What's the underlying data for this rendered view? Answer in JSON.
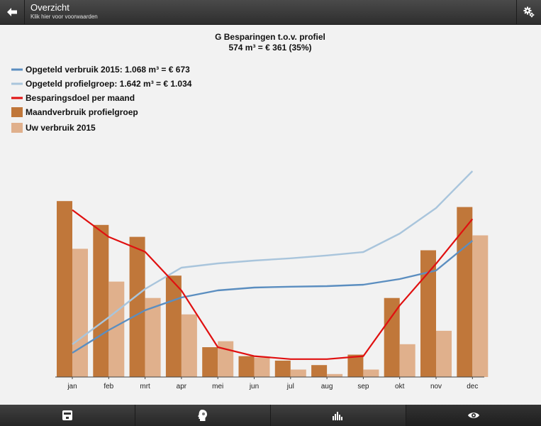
{
  "header": {
    "title": "Overzicht",
    "subtitle": "Klik hier voor voorwaarden",
    "back_icon": "arrow-left-icon",
    "settings_icon": "gears-icon"
  },
  "chart_data": {
    "type": "bar",
    "title": "G Besparingen t.o.v. profiel",
    "subtitle": "574 m³ = € 361 (35%)",
    "categories": [
      "jan",
      "feb",
      "mrt",
      "apr",
      "mei",
      "jun",
      "jul",
      "aug",
      "sep",
      "okt",
      "nov",
      "dec"
    ],
    "series": [
      {
        "name": "Opgeteld verbruik 2015: 1.068 m³ = € 673",
        "kind": "line",
        "color": "#5b8ec0",
        "values": [
          85,
          165,
          235,
          280,
          305,
          315,
          318,
          320,
          325,
          345,
          375,
          480
        ]
      },
      {
        "name": "Opgeteld profielgroep: 1.642 m³ = € 1.034",
        "kind": "line",
        "color": "#a9c5dc",
        "values": [
          115,
          210,
          310,
          385,
          400,
          410,
          418,
          428,
          440,
          505,
          595,
          725
        ]
      },
      {
        "name": "Besparingsdoel per maand",
        "kind": "line",
        "color": "#e01010",
        "values": [
          56,
          47,
          42,
          29,
          10,
          7,
          6,
          6,
          7,
          24,
          38,
          53
        ]
      },
      {
        "name": "Maandverbruik profielgroep",
        "kind": "bar",
        "color": "#c0773a",
        "values": [
          59,
          51,
          47,
          34,
          10,
          7,
          5.5,
          4,
          7.5,
          26.5,
          42.5,
          57
        ]
      },
      {
        "name": "Uw verbruik 2015",
        "kind": "bar",
        "color": "#e0b08c",
        "values": [
          43,
          32,
          26.5,
          21,
          12,
          6.5,
          2.5,
          1,
          2.5,
          11,
          15.5,
          47.5
        ]
      }
    ],
    "legend_position": "top-left",
    "grid": false
  },
  "bottom_tabs": [
    {
      "icon": "meter-icon",
      "active": false
    },
    {
      "icon": "profile-head-icon",
      "active": false
    },
    {
      "icon": "bar-chart-icon",
      "active": false
    },
    {
      "icon": "eye-icon",
      "active": true
    }
  ]
}
